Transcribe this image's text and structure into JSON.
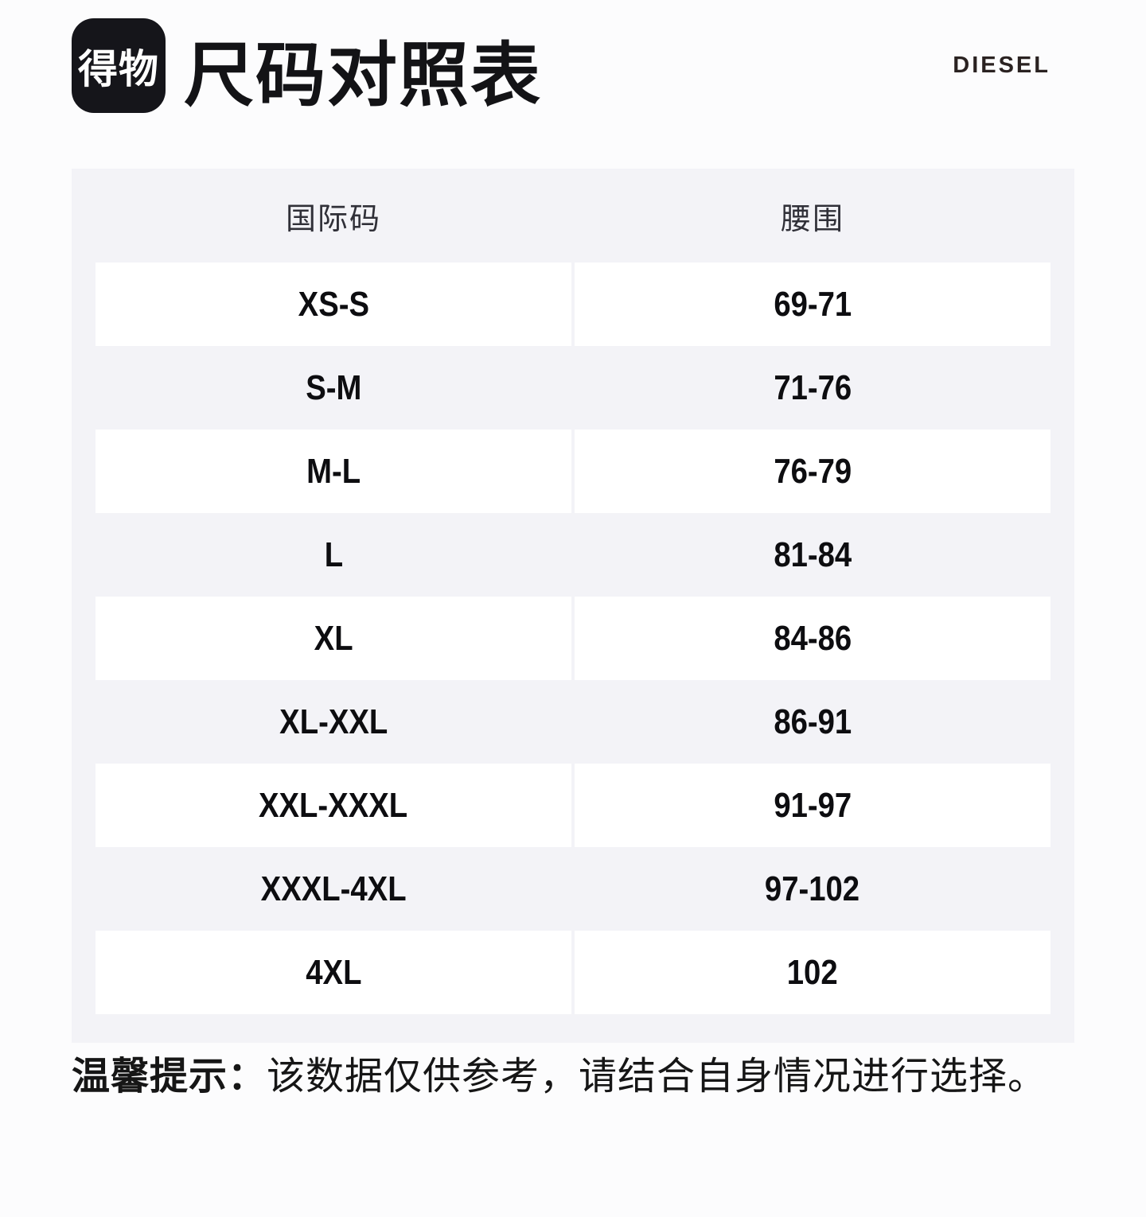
{
  "app": {
    "logo_text": "得物",
    "title": "尺码对照表",
    "brand": "DIESEL"
  },
  "table": {
    "columns": [
      "国际码",
      "腰围"
    ],
    "rows": [
      [
        "XS-S",
        "69-71"
      ],
      [
        "S-M",
        "71-76"
      ],
      [
        "M-L",
        "76-79"
      ],
      [
        "L",
        "81-84"
      ],
      [
        "XL",
        "84-86"
      ],
      [
        "XL-XXL",
        "86-91"
      ],
      [
        "XXL-XXXL",
        "91-97"
      ],
      [
        "XXXL-4XL",
        "97-102"
      ],
      [
        "4XL",
        "102"
      ]
    ]
  },
  "note": {
    "label": "温馨提示：",
    "text": "该数据仅供参考，请结合自身情况进行选择。"
  },
  "colors": {
    "page_bg": "#fcfcfd",
    "table_bg": "#f3f3f7",
    "row_bg": "#ffffff",
    "logo_bg": "#15151a",
    "text": "#131316"
  }
}
